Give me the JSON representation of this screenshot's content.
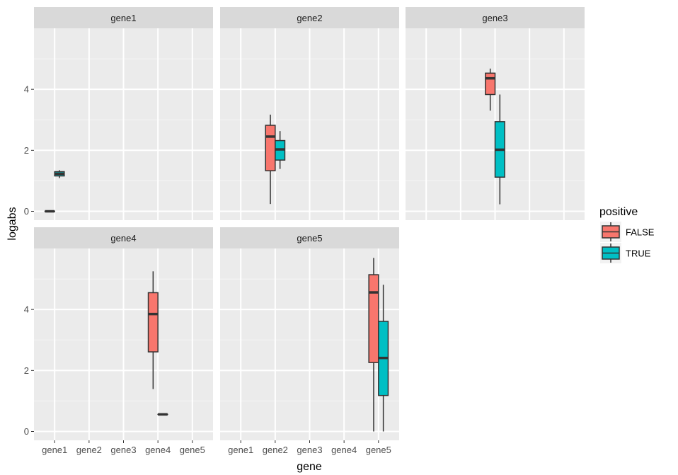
{
  "chart_data": {
    "type": "boxplot",
    "layout": "facet_wrap",
    "xlabel": "gene",
    "ylabel": "logabs",
    "ylim": [
      -0.29,
      6.0
    ],
    "y_ticks": [
      0,
      2,
      4
    ],
    "y_tick_labels": [
      "0",
      "2",
      "4"
    ],
    "y_minor_gridlines": [
      1,
      3,
      5
    ],
    "categories": [
      "gene1",
      "gene2",
      "gene3",
      "gene4",
      "gene5"
    ],
    "grid": true,
    "legend": {
      "title": "positive",
      "placement": "right",
      "entries": [
        {
          "label": "FALSE",
          "color": "#F8766D"
        },
        {
          "label": "TRUE",
          "color": "#00BFC4"
        }
      ]
    },
    "colors": {
      "FALSE": "#F8766D",
      "TRUE": "#00BFC4",
      "panel_bg": "#EBEBEB",
      "strip_bg": "#D9D9D9",
      "grid": "#FFFFFF",
      "box_outline": "#333333"
    },
    "panels": [
      {
        "title": "gene1",
        "row": 0,
        "col": 0,
        "show_y_axis": true,
        "show_x_axis": false,
        "boxes": [
          {
            "category": "gene1",
            "group": "FALSE",
            "lower": 0.0,
            "q1": 0.0,
            "median": 0.0,
            "q3": 0.0,
            "upper": 0.0
          },
          {
            "category": "gene1",
            "group": "TRUE",
            "lower": 1.09,
            "q1": 1.16,
            "median": 1.23,
            "q3": 1.3,
            "upper": 1.35
          }
        ]
      },
      {
        "title": "gene2",
        "row": 0,
        "col": 1,
        "show_y_axis": false,
        "show_x_axis": false,
        "boxes": [
          {
            "category": "gene2",
            "group": "FALSE",
            "lower": 0.24,
            "q1": 1.33,
            "median": 2.45,
            "q3": 2.82,
            "upper": 3.17
          },
          {
            "category": "gene2",
            "group": "TRUE",
            "lower": 1.39,
            "q1": 1.68,
            "median": 2.03,
            "q3": 2.32,
            "upper": 2.63
          }
        ]
      },
      {
        "title": "gene3",
        "row": 0,
        "col": 2,
        "show_y_axis": false,
        "show_x_axis": false,
        "boxes": [
          {
            "category": "gene3",
            "group": "FALSE",
            "lower": 3.3,
            "q1": 3.83,
            "median": 4.36,
            "q3": 4.53,
            "upper": 4.68
          },
          {
            "category": "gene3",
            "group": "TRUE",
            "lower": 0.23,
            "q1": 1.12,
            "median": 2.02,
            "q3": 2.94,
            "upper": 3.83
          }
        ]
      },
      {
        "title": "gene4",
        "row": 1,
        "col": 0,
        "show_y_axis": true,
        "show_x_axis": true,
        "boxes": [
          {
            "category": "gene4",
            "group": "FALSE",
            "lower": 1.39,
            "q1": 2.61,
            "median": 3.85,
            "q3": 4.55,
            "upper": 5.25
          },
          {
            "category": "gene4",
            "group": "TRUE",
            "lower": 0.56,
            "q1": 0.56,
            "median": 0.56,
            "q3": 0.56,
            "upper": 0.56
          }
        ]
      },
      {
        "title": "gene5",
        "row": 1,
        "col": 1,
        "show_y_axis": false,
        "show_x_axis": true,
        "boxes": [
          {
            "category": "gene5",
            "group": "FALSE",
            "lower": 0.0,
            "q1": 2.26,
            "median": 4.56,
            "q3": 5.14,
            "upper": 5.69
          },
          {
            "category": "gene5",
            "group": "TRUE",
            "lower": 0.0,
            "q1": 1.18,
            "median": 2.41,
            "q3": 3.61,
            "upper": 4.81
          }
        ]
      }
    ]
  }
}
